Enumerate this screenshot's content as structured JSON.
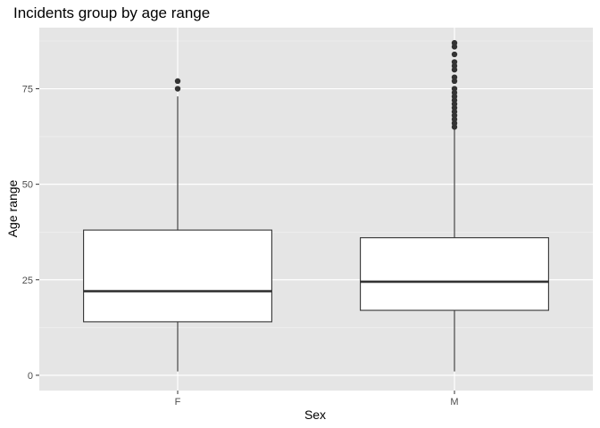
{
  "chart_data": {
    "type": "boxplot",
    "title": "Incidents group by age range",
    "xlabel": "Sex",
    "ylabel": "Age range",
    "categories": [
      "F",
      "M"
    ],
    "ylim": [
      -4,
      91
    ],
    "yticks": [
      0,
      25,
      50,
      75
    ],
    "grid": true,
    "boxes": [
      {
        "category": "F",
        "whisker_low": 1,
        "q1": 14,
        "median": 22,
        "q3": 38,
        "whisker_high": 73,
        "outliers": [
          75,
          77
        ]
      },
      {
        "category": "M",
        "whisker_low": 1,
        "q1": 17,
        "median": 24.5,
        "q3": 36,
        "whisker_high": 65,
        "outliers": [
          65,
          66,
          67,
          68,
          69,
          70,
          71,
          72,
          73,
          74,
          75,
          77,
          78,
          80,
          81,
          82,
          84,
          86,
          87
        ]
      }
    ],
    "colors": {
      "panel": "#e5e5e5",
      "grid_major": "#ffffff",
      "grid_minor": "#f2f2f2",
      "box_fill": "#ffffff",
      "box_stroke": "#333333",
      "outlier": "#333333"
    }
  }
}
